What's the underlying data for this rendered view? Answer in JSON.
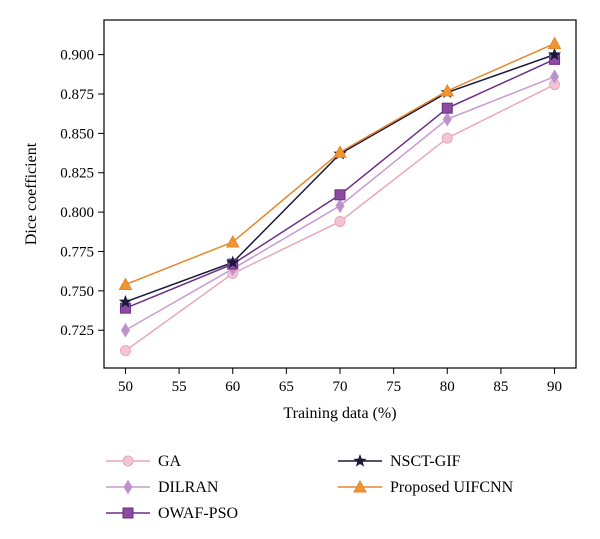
{
  "chart_data": {
    "type": "line",
    "title": "",
    "xlabel": "Training data (%)",
    "ylabel": "Dice coefficient",
    "x": [
      50,
      60,
      70,
      80,
      90
    ],
    "xlim": [
      48,
      92
    ],
    "ylim": [
      0.701,
      0.922
    ],
    "xticks": [
      50,
      55,
      60,
      65,
      70,
      75,
      80,
      85,
      90
    ],
    "xtick_labels": [
      "50",
      "55",
      "60",
      "65",
      "70",
      "75",
      "80",
      "85",
      "90"
    ],
    "yticks": [
      0.725,
      0.75,
      0.775,
      0.8,
      0.825,
      0.85,
      0.875,
      0.9
    ],
    "ytick_labels": [
      "0.725",
      "0.750",
      "0.775",
      "0.800",
      "0.825",
      "0.850",
      "0.875",
      "0.900"
    ],
    "grid": false,
    "legend_position": "below",
    "series": [
      {
        "name": "GA",
        "values": [
          0.712,
          0.761,
          0.794,
          0.847,
          0.881
        ],
        "color": "#e8a8c0",
        "marker_fill": "#f3c4d4",
        "marker": "circle"
      },
      {
        "name": "DILRAN",
        "values": [
          0.725,
          0.764,
          0.804,
          0.859,
          0.886
        ],
        "color": "#c79ad4",
        "marker_fill": "#b892c8",
        "marker": "diamond"
      },
      {
        "name": "OWAF-PSO",
        "values": [
          0.739,
          0.767,
          0.811,
          0.866,
          0.897
        ],
        "color": "#6e2f86",
        "marker_fill": "#8c4aa0",
        "marker": "square"
      },
      {
        "name": "NSCT-GIF",
        "values": [
          0.743,
          0.768,
          0.837,
          0.876,
          0.9
        ],
        "color": "#1a1a3a",
        "marker_fill": "#1a1a3a",
        "marker": "star"
      },
      {
        "name": "Proposed UIFCNN",
        "values": [
          0.754,
          0.781,
          0.838,
          0.877,
          0.907
        ],
        "color": "#e8862a",
        "marker_fill": "#f0962e",
        "marker": "triangle"
      }
    ]
  }
}
